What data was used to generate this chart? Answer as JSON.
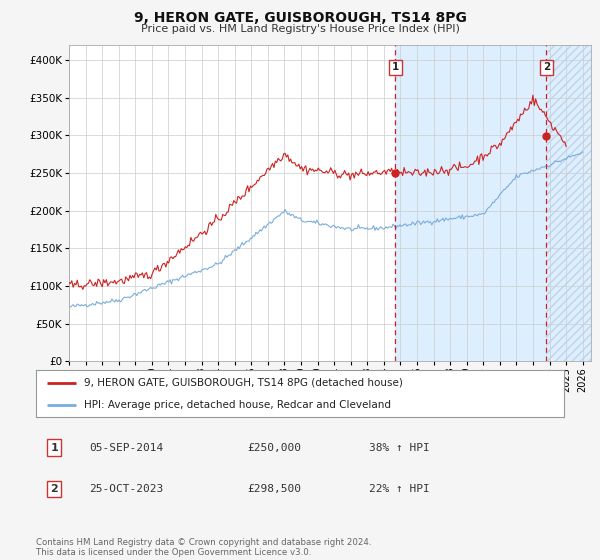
{
  "title": "9, HERON GATE, GUISBOROUGH, TS14 8PG",
  "subtitle": "Price paid vs. HM Land Registry's House Price Index (HPI)",
  "ytick_values": [
    0,
    50000,
    100000,
    150000,
    200000,
    250000,
    300000,
    350000,
    400000
  ],
  "ylim": [
    0,
    420000
  ],
  "xlim_start": 1995.0,
  "xlim_end": 2026.5,
  "hpi_color": "#7aaddc",
  "price_color": "#cc2222",
  "vline1_x": 2014.69,
  "vline2_x": 2023.81,
  "ann1_y": 250000,
  "ann2_y": 298500,
  "legend_line1": "9, HERON GATE, GUISBOROUGH, TS14 8PG (detached house)",
  "legend_line2": "HPI: Average price, detached house, Redcar and Cleveland",
  "note1_label": "1",
  "note1_date": "05-SEP-2014",
  "note1_price": "£250,000",
  "note1_hpi": "38% ↑ HPI",
  "note2_label": "2",
  "note2_date": "25-OCT-2023",
  "note2_price": "£298,500",
  "note2_hpi": "22% ↑ HPI",
  "footer": "Contains HM Land Registry data © Crown copyright and database right 2024.\nThis data is licensed under the Open Government Licence v3.0.",
  "xtick_years": [
    1995,
    1996,
    1997,
    1998,
    1999,
    2000,
    2001,
    2002,
    2003,
    2004,
    2005,
    2006,
    2007,
    2008,
    2009,
    2010,
    2011,
    2012,
    2013,
    2014,
    2015,
    2016,
    2017,
    2018,
    2019,
    2020,
    2021,
    2022,
    2023,
    2024,
    2025,
    2026
  ],
  "shaded_color": "#ddeeff",
  "hatch_color": "#c0d4e8"
}
